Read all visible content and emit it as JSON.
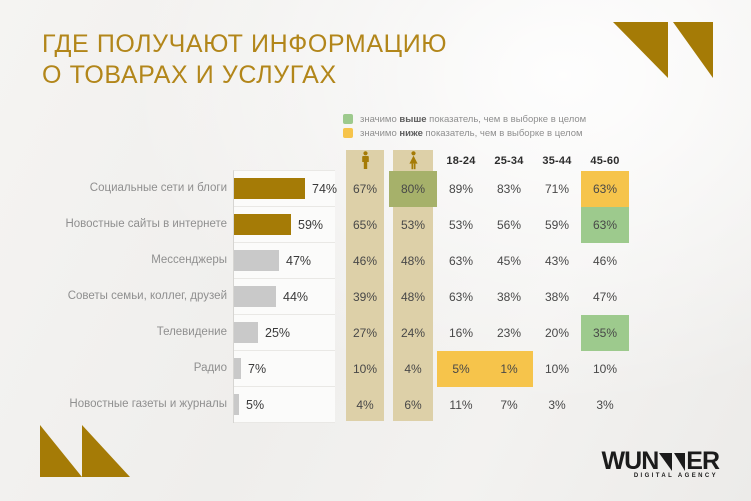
{
  "title": {
    "line1": "ГДЕ ПОЛУЧАЮТ ИНФОРМАЦИЮ",
    "line2": "О ТОВАРАХ И УСЛУГАХ"
  },
  "legend": {
    "higher": {
      "prefix": "значимо ",
      "word": "выше",
      "suffix": " показатель, чем в выборке в целом"
    },
    "lower": {
      "prefix": "значимо ",
      "word": "ниже",
      "suffix": " показатель, чем в выборке в целом"
    }
  },
  "colors": {
    "accent_gold": "#a57b06",
    "bar_gray": "#c9c9c9",
    "beige_column": "#ddd0a8",
    "higher_green": "#9dca8d",
    "higher_green_on_beige": "#a6b16a",
    "lower_yellow": "#f6c44b"
  },
  "chart_data": {
    "type": "bar",
    "orientation": "horizontal",
    "title": "ГДЕ ПОЛУЧАЮТ ИНФОРМАЦИЮ О ТОВАРАХ И УСЛУГАХ",
    "xlim": [
      0,
      100
    ],
    "categories": [
      "Социальные сети и блоги",
      "Новостные сайты в интернете",
      "Мессенджеры",
      "Советы семьи, коллег, друзей",
      "Телевидение",
      "Радио",
      "Новостные газеты и журналы"
    ],
    "values": [
      74,
      59,
      47,
      44,
      25,
      7,
      5
    ],
    "value_labels": [
      "74%",
      "59%",
      "47%",
      "44%",
      "25%",
      "7%",
      "5%"
    ],
    "bar_tones": [
      "gold",
      "gold",
      "gray",
      "gray",
      "gray",
      "gray",
      "gray"
    ],
    "table": {
      "gender_columns": [
        "male",
        "female"
      ],
      "age_columns": [
        "18-24",
        "25-34",
        "35-44",
        "45-60"
      ],
      "legend": {
        "green": "значимо выше показатель, чем в выборке в целом",
        "yellow": "значимо ниже показатель, чем в выборке в целом"
      },
      "rows": [
        {
          "category": "Социальные сети и блоги",
          "cells": [
            {
              "v": "67%",
              "hl": ""
            },
            {
              "v": "80%",
              "hl": "hl-olive"
            },
            {
              "v": "89%",
              "hl": ""
            },
            {
              "v": "83%",
              "hl": ""
            },
            {
              "v": "71%",
              "hl": ""
            },
            {
              "v": "63%",
              "hl": "hl-yellow"
            }
          ]
        },
        {
          "category": "Новостные сайты в интернете",
          "cells": [
            {
              "v": "65%",
              "hl": ""
            },
            {
              "v": "53%",
              "hl": ""
            },
            {
              "v": "53%",
              "hl": ""
            },
            {
              "v": "56%",
              "hl": ""
            },
            {
              "v": "59%",
              "hl": ""
            },
            {
              "v": "63%",
              "hl": "hl-green"
            }
          ]
        },
        {
          "category": "Мессенджеры",
          "cells": [
            {
              "v": "46%",
              "hl": ""
            },
            {
              "v": "48%",
              "hl": ""
            },
            {
              "v": "63%",
              "hl": ""
            },
            {
              "v": "45%",
              "hl": ""
            },
            {
              "v": "43%",
              "hl": ""
            },
            {
              "v": "46%",
              "hl": ""
            }
          ]
        },
        {
          "category": "Советы семьи, коллег, друзей",
          "cells": [
            {
              "v": "39%",
              "hl": ""
            },
            {
              "v": "48%",
              "hl": ""
            },
            {
              "v": "63%",
              "hl": ""
            },
            {
              "v": "38%",
              "hl": ""
            },
            {
              "v": "38%",
              "hl": ""
            },
            {
              "v": "47%",
              "hl": ""
            }
          ]
        },
        {
          "category": "Телевидение",
          "cells": [
            {
              "v": "27%",
              "hl": ""
            },
            {
              "v": "24%",
              "hl": ""
            },
            {
              "v": "16%",
              "hl": ""
            },
            {
              "v": "23%",
              "hl": ""
            },
            {
              "v": "20%",
              "hl": ""
            },
            {
              "v": "35%",
              "hl": "hl-green"
            }
          ]
        },
        {
          "category": "Радио",
          "cells": [
            {
              "v": "10%",
              "hl": ""
            },
            {
              "v": "4%",
              "hl": ""
            },
            {
              "v": "5%",
              "hl": "hl-yellow"
            },
            {
              "v": "1%",
              "hl": "hl-yellow"
            },
            {
              "v": "10%",
              "hl": ""
            },
            {
              "v": "10%",
              "hl": ""
            }
          ]
        },
        {
          "category": "Новостные газеты и журналы",
          "cells": [
            {
              "v": "4%",
              "hl": ""
            },
            {
              "v": "6%",
              "hl": ""
            },
            {
              "v": "11%",
              "hl": ""
            },
            {
              "v": "7%",
              "hl": ""
            },
            {
              "v": "3%",
              "hl": ""
            },
            {
              "v": "3%",
              "hl": ""
            }
          ]
        }
      ]
    }
  },
  "logo": {
    "word_start": "WUN",
    "word_end": "ER",
    "subtext": "DIGITAL AGENCY"
  }
}
